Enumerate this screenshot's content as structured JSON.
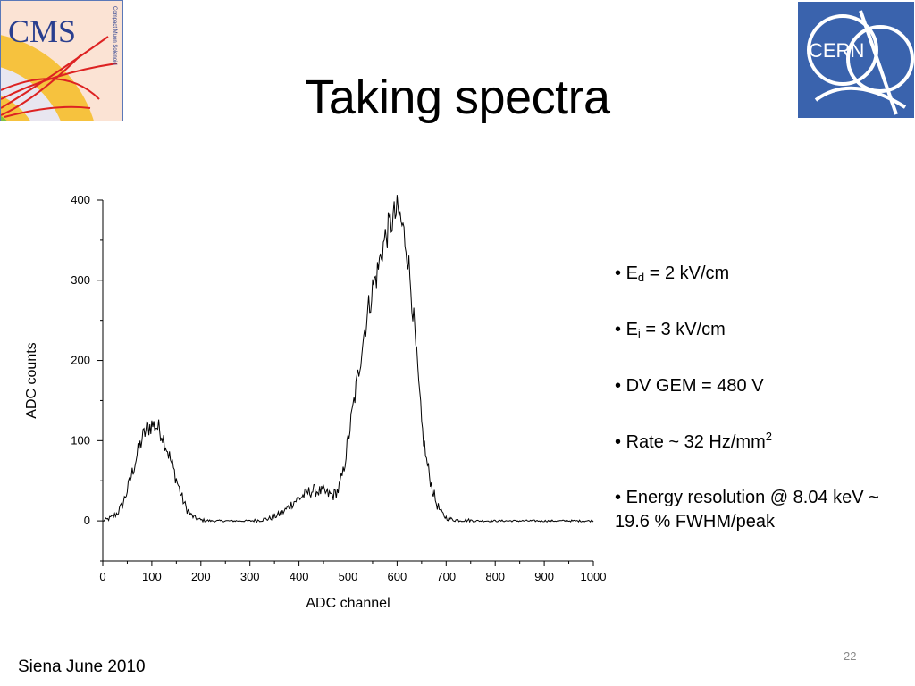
{
  "slide": {
    "title": "Taking spectra",
    "footer": "Siena June 2010",
    "page_number": "22"
  },
  "logos": {
    "cms": {
      "text": "CMS",
      "subtitle": "Compact Muon Solenoid"
    },
    "cern": {
      "text": "CERN"
    }
  },
  "bullets": [
    {
      "bullet": "•",
      "prefix": "E",
      "sub": "d",
      "rest": " = 2 kV/cm"
    },
    {
      "bullet": "•",
      "prefix": "E",
      "sub": "i",
      "rest": " = 3 kV/cm"
    },
    {
      "bullet": "•",
      "text": "DV GEM = 480 V"
    },
    {
      "bullet": "•",
      "prefix": "Rate ~ 32 Hz/mm",
      "sup": "2"
    },
    {
      "bullet": "•",
      "text": "Energy resolution @ 8.04 keV ~ 19.6 % FWHM/peak"
    }
  ],
  "colors": {
    "cms_border": "#5a78b8",
    "cern_bg": "#3a63ad",
    "plot_line": "#000000",
    "page_number": "#8a8a8a"
  },
  "chart_data": {
    "type": "line",
    "title": "",
    "xlabel": "ADC channel",
    "ylabel": "ADC counts",
    "xlim": [
      0,
      1000
    ],
    "ylim": [
      -50,
      400
    ],
    "xticks": [
      0,
      100,
      200,
      300,
      400,
      500,
      600,
      700,
      800,
      900,
      1000
    ],
    "yticks": [
      0,
      100,
      200,
      300,
      400
    ],
    "grid": false,
    "legend": "none",
    "series": [
      {
        "x": [
          0,
          10,
          20,
          30,
          40,
          50,
          60,
          70,
          80,
          90,
          100,
          110,
          120,
          130,
          140,
          150,
          160,
          170,
          180,
          190,
          200,
          220,
          240,
          260,
          280,
          300,
          320,
          340,
          360,
          370,
          380,
          390,
          400,
          410,
          420,
          430,
          440,
          450,
          460,
          470,
          480,
          490,
          500,
          510,
          520,
          530,
          540,
          550,
          560,
          570,
          580,
          590,
          600,
          605,
          610,
          620,
          630,
          640,
          650,
          660,
          670,
          680,
          690,
          700,
          710,
          720,
          740,
          760,
          800,
          850,
          900,
          950,
          1000
        ],
        "y": [
          0,
          2,
          5,
          10,
          20,
          38,
          60,
          82,
          102,
          115,
          120,
          118,
          110,
          92,
          72,
          52,
          32,
          16,
          7,
          3,
          1,
          0,
          0,
          0,
          0,
          0,
          1,
          3,
          8,
          12,
          18,
          24,
          28,
          32,
          36,
          38,
          37,
          36,
          33,
          32,
          38,
          60,
          100,
          140,
          180,
          225,
          260,
          290,
          310,
          340,
          360,
          375,
          385,
          380,
          368,
          340,
          280,
          200,
          120,
          75,
          45,
          22,
          10,
          4,
          2,
          1,
          1,
          0,
          0,
          0,
          0,
          0,
          0
        ]
      }
    ]
  }
}
